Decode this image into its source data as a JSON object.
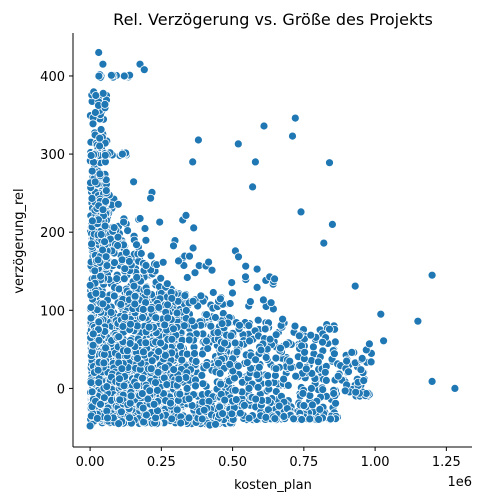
{
  "chart_data": {
    "type": "scatter",
    "title": "Rel. Verzögerung vs. Größe des Projekts",
    "xlabel": "kosten_plan",
    "ylabel": "verzögerung_rel",
    "x_offset_label": "1e6",
    "xlim": [
      -60000,
      1340000
    ],
    "ylim": [
      -75,
      455
    ],
    "x_ticks": [
      0,
      250000,
      500000,
      750000,
      1000000,
      1250000
    ],
    "x_tick_labels": [
      "0.00",
      "0.25",
      "0.50",
      "0.75",
      "1.00",
      "1.25"
    ],
    "y_ticks": [
      0,
      100,
      200,
      300,
      400
    ],
    "y_tick_labels": [
      "0",
      "100",
      "200",
      "300",
      "400"
    ],
    "grid": false,
    "legend": "none",
    "colors": {
      "marker": "#1f77b4",
      "marker_edge": "#ffffff",
      "axis": "#000000"
    },
    "notable_points": [
      {
        "x": 30000,
        "y": 430
      },
      {
        "x": 45000,
        "y": 415
      },
      {
        "x": 175000,
        "y": 415
      },
      {
        "x": 190000,
        "y": 408
      },
      {
        "x": 120000,
        "y": 400
      },
      {
        "x": 20000,
        "y": 375
      },
      {
        "x": 380000,
        "y": 318
      },
      {
        "x": 610000,
        "y": 336
      },
      {
        "x": 720000,
        "y": 346
      },
      {
        "x": 710000,
        "y": 323
      },
      {
        "x": 840000,
        "y": 289
      },
      {
        "x": 520000,
        "y": 313
      },
      {
        "x": 580000,
        "y": 290
      },
      {
        "x": 360000,
        "y": 290
      },
      {
        "x": 570000,
        "y": 258
      },
      {
        "x": 740000,
        "y": 226
      },
      {
        "x": 820000,
        "y": 186
      },
      {
        "x": 850000,
        "y": 210
      },
      {
        "x": 1200000,
        "y": 145
      },
      {
        "x": 1150000,
        "y": 86
      },
      {
        "x": 1280000,
        "y": 0
      },
      {
        "x": 1020000,
        "y": 95
      },
      {
        "x": 1030000,
        "y": 61
      },
      {
        "x": 1200000,
        "y": 9
      },
      {
        "x": 930000,
        "y": 131
      },
      {
        "x": 980000,
        "y": 57
      },
      {
        "x": 900000,
        "y": 35
      },
      {
        "x": 950000,
        "y": 24
      },
      {
        "x": 960000,
        "y": 10
      },
      {
        "x": 680000,
        "y": -36
      },
      {
        "x": 750000,
        "y": -22
      },
      {
        "x": 420000,
        "y": -47
      },
      {
        "x": 440000,
        "y": -46
      },
      {
        "x": 0,
        "y": -48
      },
      {
        "x": 100000,
        "y": -45
      }
    ],
    "cluster_description_is_layout_only": true
  }
}
